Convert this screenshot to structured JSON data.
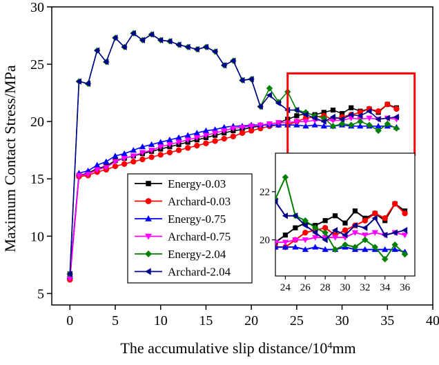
{
  "chart_data": {
    "type": "line",
    "title": "",
    "xlabel": "The accumulative slip distance/10",
    "xlabel_sup": "4",
    "xlabel_unit": "mm",
    "ylabel": "Maximum Contact Stress/MPa",
    "xlim": [
      -2,
      40
    ],
    "ylim": [
      4,
      30
    ],
    "x_ticks": [
      0,
      5,
      10,
      15,
      20,
      25,
      30,
      35,
      40
    ],
    "y_ticks": [
      5,
      10,
      15,
      20,
      25,
      30
    ],
    "grid": false,
    "legend_position": "bottom-center",
    "x": [
      0,
      1,
      2,
      3,
      4,
      5,
      6,
      7,
      8,
      9,
      10,
      11,
      12,
      13,
      14,
      15,
      16,
      17,
      18,
      19,
      20,
      21,
      22,
      23,
      24,
      25,
      26,
      27,
      28,
      29,
      30,
      31,
      32,
      33,
      34,
      35,
      36
    ],
    "series": [
      {
        "name": "Energy-0.03",
        "color": "#000000",
        "marker": "square",
        "values": [
          6.7,
          15.3,
          15.5,
          15.9,
          16.1,
          16.6,
          16.8,
          17.0,
          17.2,
          17.4,
          17.6,
          17.8,
          18.0,
          18.2,
          18.4,
          18.6,
          18.8,
          19.0,
          19.2,
          19.3,
          19.5,
          19.6,
          19.8,
          19.9,
          20.2,
          20.5,
          20.7,
          20.6,
          20.8,
          21.0,
          20.7,
          21.2,
          20.9,
          21.1,
          20.8,
          21.5,
          21.2
        ]
      },
      {
        "name": "Archard-0.03",
        "color": "#ff0000",
        "marker": "circle",
        "values": [
          6.2,
          15.2,
          15.3,
          15.6,
          15.8,
          16.1,
          16.3,
          16.5,
          16.7,
          16.9,
          17.1,
          17.3,
          17.5,
          17.7,
          17.9,
          18.1,
          18.3,
          18.5,
          18.7,
          19.0,
          19.2,
          19.4,
          19.6,
          19.7,
          19.7,
          20.0,
          20.3,
          20.4,
          20.5,
          20.2,
          20.4,
          20.6,
          20.8,
          21.1,
          20.9,
          21.5,
          21.1
        ]
      },
      {
        "name": "Energy-0.75",
        "color": "#0000ff",
        "marker": "triangle",
        "values": [
          6.5,
          15.5,
          15.7,
          16.2,
          16.5,
          17.0,
          17.2,
          17.5,
          17.8,
          18.0,
          18.2,
          18.4,
          18.6,
          18.8,
          19.0,
          19.2,
          19.3,
          19.5,
          19.6,
          19.6,
          19.7,
          19.7,
          19.7,
          19.7,
          19.7,
          19.7,
          19.6,
          19.7,
          19.6,
          19.6,
          19.7,
          19.6,
          19.6,
          19.6,
          19.6,
          19.6,
          19.5
        ]
      },
      {
        "name": "Archard-0.75",
        "color": "#ff00ff",
        "marker": "triangle-down",
        "values": [
          6.3,
          15.3,
          15.4,
          15.8,
          16.0,
          16.5,
          16.8,
          17.0,
          17.3,
          17.5,
          17.8,
          18.0,
          18.2,
          18.4,
          18.6,
          18.8,
          19.0,
          19.2,
          19.4,
          19.5,
          19.6,
          19.7,
          19.8,
          19.9,
          19.9,
          20.0,
          20.0,
          20.1,
          20.1,
          20.1,
          20.1,
          20.3,
          20.2,
          20.3,
          20.2,
          20.3,
          20.2
        ]
      },
      {
        "name": "Energy-2.04",
        "color": "#008000",
        "marker": "diamond",
        "values": [
          6.7,
          23.5,
          23.3,
          26.2,
          25.2,
          27.3,
          26.5,
          27.7,
          27.1,
          27.6,
          27.1,
          27.0,
          26.7,
          26.5,
          26.3,
          26.5,
          26.1,
          24.9,
          25.3,
          23.6,
          23.7,
          21.3,
          22.9,
          21.7,
          22.6,
          21.0,
          20.8,
          20.5,
          20.3,
          19.6,
          19.8,
          19.7,
          20.0,
          19.7,
          19.2,
          19.8,
          19.4
        ]
      },
      {
        "name": "Archard-2.04",
        "color": "#00008b",
        "marker": "triangle-left",
        "values": [
          6.7,
          23.5,
          23.3,
          26.2,
          25.2,
          27.3,
          26.5,
          27.7,
          27.1,
          27.6,
          27.1,
          27.0,
          26.7,
          26.5,
          26.3,
          26.5,
          26.1,
          24.9,
          25.3,
          23.6,
          23.7,
          21.3,
          22.3,
          21.6,
          21.0,
          21.0,
          20.6,
          20.3,
          20.0,
          20.4,
          20.2,
          20.6,
          20.5,
          20.9,
          20.2,
          20.3,
          20.4
        ]
      }
    ],
    "highlight_box": {
      "x_range": [
        24,
        38
      ],
      "y_range": [
        17.1,
        24.2
      ],
      "color": "#ff0000"
    },
    "inset": {
      "xlim": [
        23,
        37
      ],
      "ylim": [
        18.5,
        23.6
      ],
      "x_ticks": [
        24,
        26,
        28,
        30,
        32,
        34,
        36
      ],
      "y_ticks": [
        20,
        22
      ],
      "x_from": 23
    }
  }
}
